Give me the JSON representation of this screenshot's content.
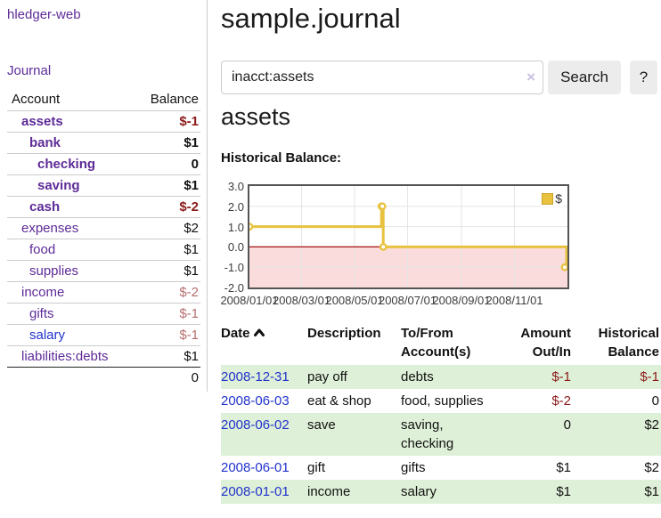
{
  "app": {
    "brand": "hledger-web",
    "nav_journal": "Journal"
  },
  "sidebar": {
    "header": {
      "account": "Account",
      "balance": "Balance"
    },
    "accounts": [
      {
        "name": "assets",
        "depth": "d0",
        "weight": "bold",
        "balance": "$-1",
        "tone": "neg"
      },
      {
        "name": "bank",
        "depth": "d1",
        "weight": "bold",
        "balance": "$1"
      },
      {
        "name": "checking",
        "depth": "d2",
        "weight": "bold",
        "balance": "0"
      },
      {
        "name": "saving",
        "depth": "d2",
        "weight": "bold",
        "balance": "$1"
      },
      {
        "name": "cash",
        "depth": "d1",
        "weight": "bold",
        "balance": "$-2",
        "tone": "neg"
      },
      {
        "name": "expenses",
        "depth": "d0",
        "balance": "$2"
      },
      {
        "name": "food",
        "depth": "d1",
        "balance": "$1"
      },
      {
        "name": "supplies",
        "depth": "d1",
        "balance": "$1"
      },
      {
        "name": "income",
        "depth": "d0",
        "balance": "$-2",
        "tone": "neg-weak"
      },
      {
        "name": "gifts",
        "depth": "d1",
        "balance": "$-1",
        "tone": "neg-weak"
      },
      {
        "name": "salary",
        "depth": "d1",
        "link": "blue",
        "balance": "$-1",
        "tone": "neg-weak"
      },
      {
        "name": "liabilities:debts",
        "depth": "d0",
        "balance": "$1"
      }
    ],
    "total": "0"
  },
  "header": {
    "title": "sample.journal"
  },
  "search": {
    "value": "inacct:assets",
    "clear_icon": "×",
    "button_label": "Search",
    "help_label": "?"
  },
  "account_page": {
    "heading": "assets",
    "chart_label": "Historical Balance:"
  },
  "chart_data": {
    "type": "line",
    "step": true,
    "title": "Historical Balance",
    "series": [
      {
        "name": "$",
        "color": "#e8c23f",
        "points": [
          {
            "date": "2008-01-01",
            "value": 1
          },
          {
            "date": "2008-06-01",
            "value": 2
          },
          {
            "date": "2008-06-02",
            "value": 2
          },
          {
            "date": "2008-06-03",
            "value": 0
          },
          {
            "date": "2008-12-31",
            "value": -1
          }
        ]
      }
    ],
    "x_range": [
      "2008-01-01",
      "2009-01-01"
    ],
    "x_ticks": [
      "2008/01/01",
      "2008/03/01",
      "2008/05/01",
      "2008/07/01",
      "2008/09/01",
      "2008/11/01"
    ],
    "y_ticks": [
      "3.0",
      "2.0",
      "1.0",
      "0.0",
      "-1.0",
      "-2.0"
    ],
    "ylim": [
      -2,
      3
    ],
    "grid": true,
    "grid_color": "#e5e5e5",
    "negative_fill": "#fbdcdc",
    "zero_line_color": "#a11111",
    "legend": "$",
    "legend_position": "top-right"
  },
  "register": {
    "headers": {
      "date": "Date",
      "description": "Description",
      "accounts": [
        "To/From",
        "Account(s)"
      ],
      "amount": [
        "Amount",
        "Out/In"
      ],
      "balance": [
        "Historical",
        "Balance"
      ]
    },
    "rows": [
      {
        "date": "2008-12-31",
        "description": "pay off",
        "accounts": [
          "debts"
        ],
        "amount": "$-1",
        "amount_tone": "neg",
        "balance": "$-1",
        "balance_tone": "neg",
        "shade": "green"
      },
      {
        "date": "2008-06-03",
        "description": "eat & shop",
        "accounts": [
          "food, supplies"
        ],
        "amount": "$-2",
        "amount_tone": "neg",
        "balance": "0"
      },
      {
        "date": "2008-06-02",
        "description": "save",
        "accounts": [
          "saving,",
          "checking"
        ],
        "amount": "0",
        "balance": "$2",
        "shade": "green"
      },
      {
        "date": "2008-06-01",
        "description": "gift",
        "accounts": [
          "gifts"
        ],
        "amount": "$1",
        "balance": "$2"
      },
      {
        "date": "2008-01-01",
        "description": "income",
        "accounts": [
          "salary"
        ],
        "amount": "$1",
        "balance": "$1",
        "shade": "green"
      }
    ]
  }
}
